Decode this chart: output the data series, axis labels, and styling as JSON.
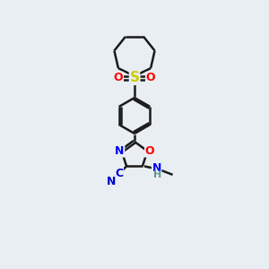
{
  "bg_color": "#e8eef2",
  "bond_color": "#1a1a1a",
  "N_color": "#0000ff",
  "O_color": "#ff0000",
  "S_color": "#cccc00",
  "H_color": "#5a9a8a",
  "CN_color": "#0000cc",
  "figsize": [
    3.0,
    3.0
  ],
  "dpi": 100,
  "xlim": [
    0,
    10
  ],
  "ylim": [
    0,
    14
  ]
}
